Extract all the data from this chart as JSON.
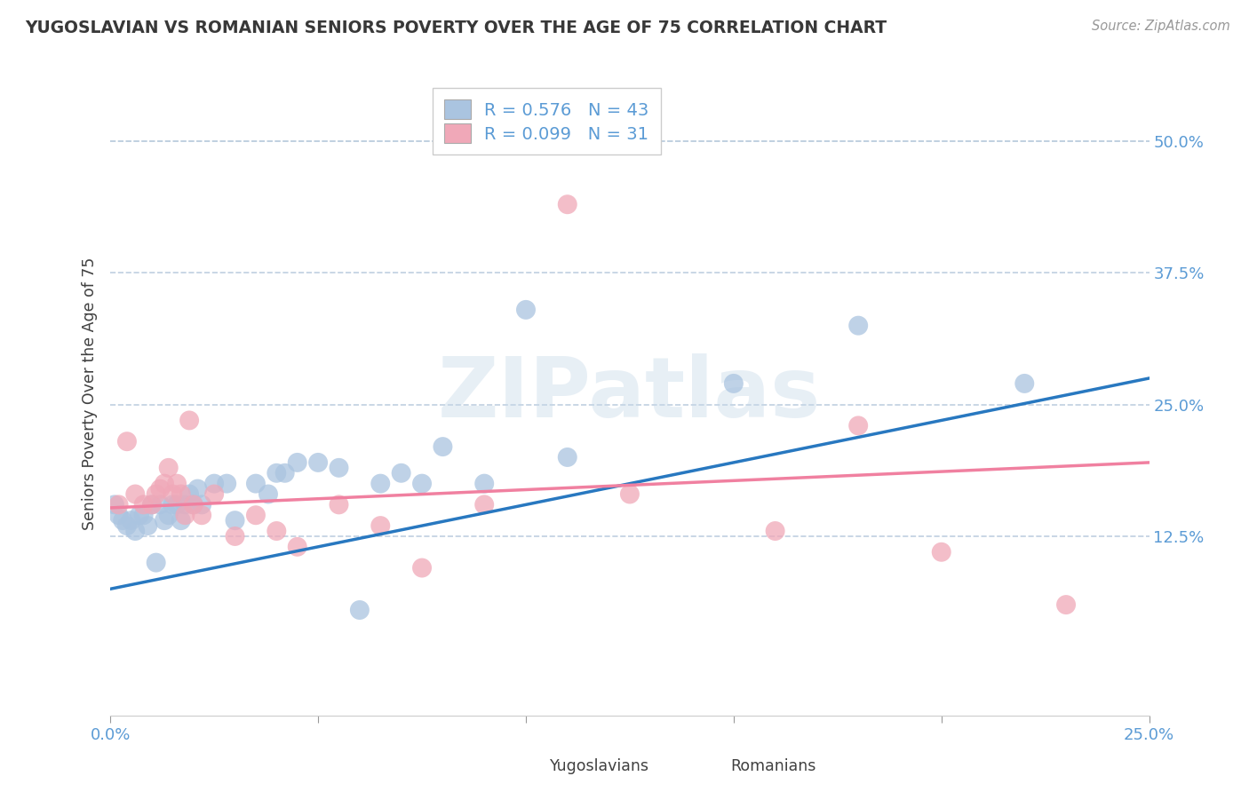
{
  "title": "YUGOSLAVIAN VS ROMANIAN SENIORS POVERTY OVER THE AGE OF 75 CORRELATION CHART",
  "source": "Source: ZipAtlas.com",
  "xlabel_yugoslavians": "Yugoslavians",
  "xlabel_romanians": "Romanians",
  "ylabel": "Seniors Poverty Over the Age of 75",
  "xlim": [
    0.0,
    0.25
  ],
  "ylim": [
    -0.045,
    0.565
  ],
  "yticks": [
    0.125,
    0.25,
    0.375,
    0.5
  ],
  "ytick_labels": [
    "12.5%",
    "25.0%",
    "37.5%",
    "50.0%"
  ],
  "xticks_bottom": [
    0.0,
    0.25
  ],
  "xtick_labels_bottom": [
    "0.0%",
    "25.0%"
  ],
  "yug_R": 0.576,
  "yug_N": 43,
  "rom_R": 0.099,
  "rom_N": 31,
  "yug_color": "#aac4e0",
  "rom_color": "#f0a8b8",
  "yug_line_color": "#2878c0",
  "rom_line_color": "#f080a0",
  "background_color": "#ffffff",
  "grid_color": "#c0d0e0",
  "title_color": "#383838",
  "ylabel_color": "#404040",
  "axis_label_color": "#5b9bd5",
  "tick_color": "#5b9bd5",
  "legend_r_color": "#5b9bd5",
  "watermark": "ZIPatlas",
  "yug_scatter_x": [
    0.001,
    0.002,
    0.003,
    0.004,
    0.005,
    0.006,
    0.007,
    0.008,
    0.009,
    0.01,
    0.011,
    0.012,
    0.013,
    0.014,
    0.015,
    0.016,
    0.017,
    0.018,
    0.019,
    0.02,
    0.021,
    0.022,
    0.025,
    0.028,
    0.03,
    0.035,
    0.038,
    0.04,
    0.042,
    0.045,
    0.05,
    0.055,
    0.06,
    0.065,
    0.07,
    0.075,
    0.08,
    0.09,
    0.1,
    0.11,
    0.15,
    0.18,
    0.22
  ],
  "yug_scatter_y": [
    0.155,
    0.145,
    0.14,
    0.135,
    0.14,
    0.13,
    0.145,
    0.145,
    0.135,
    0.155,
    0.1,
    0.155,
    0.14,
    0.145,
    0.155,
    0.155,
    0.14,
    0.155,
    0.165,
    0.155,
    0.17,
    0.155,
    0.175,
    0.175,
    0.14,
    0.175,
    0.165,
    0.185,
    0.185,
    0.195,
    0.195,
    0.19,
    0.055,
    0.175,
    0.185,
    0.175,
    0.21,
    0.175,
    0.34,
    0.2,
    0.27,
    0.325,
    0.27
  ],
  "rom_scatter_x": [
    0.002,
    0.004,
    0.006,
    0.008,
    0.01,
    0.011,
    0.012,
    0.013,
    0.014,
    0.015,
    0.016,
    0.017,
    0.018,
    0.019,
    0.02,
    0.022,
    0.025,
    0.03,
    0.035,
    0.04,
    0.045,
    0.055,
    0.065,
    0.075,
    0.09,
    0.11,
    0.125,
    0.16,
    0.18,
    0.2,
    0.23
  ],
  "rom_scatter_y": [
    0.155,
    0.215,
    0.165,
    0.155,
    0.155,
    0.165,
    0.17,
    0.175,
    0.19,
    0.165,
    0.175,
    0.165,
    0.145,
    0.235,
    0.155,
    0.145,
    0.165,
    0.125,
    0.145,
    0.13,
    0.115,
    0.155,
    0.135,
    0.095,
    0.155,
    0.44,
    0.165,
    0.13,
    0.23,
    0.11,
    0.06
  ],
  "yug_line_x": [
    0.0,
    0.25
  ],
  "yug_line_y": [
    0.075,
    0.275
  ],
  "rom_line_x": [
    0.0,
    0.25
  ],
  "rom_line_y": [
    0.152,
    0.195
  ]
}
